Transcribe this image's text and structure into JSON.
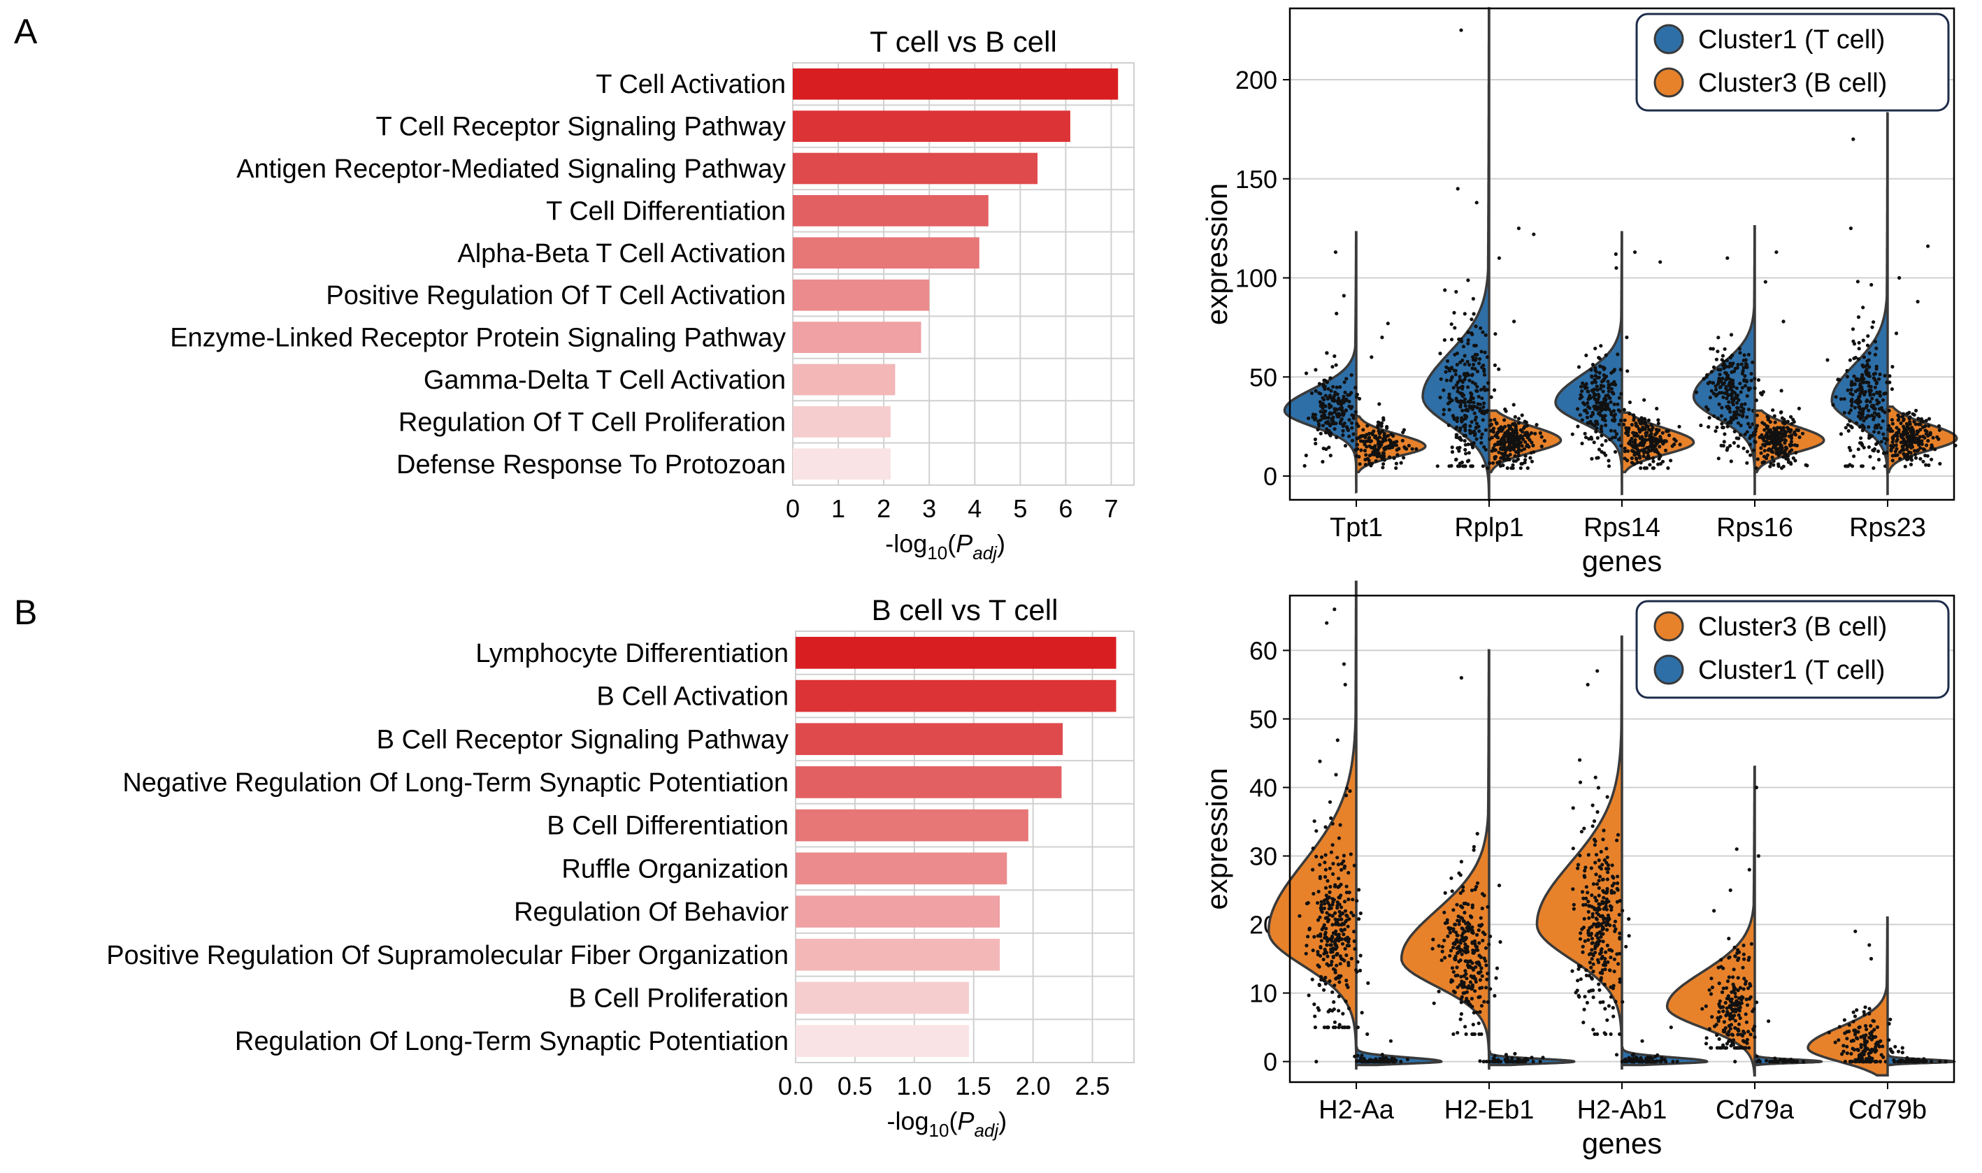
{
  "panel_labels": [
    "A",
    "B"
  ],
  "colors": {
    "bar_red": "#d7191c",
    "tcell_blue": "#2e6fa7",
    "bcell_orange": "#e7822b",
    "outline": "#3a3a3a",
    "grid": "#d0d0d0",
    "legend_border": "#1d2c4a"
  },
  "chart_data": [
    {
      "id": "A-bar",
      "type": "bar",
      "orientation": "horizontal",
      "title": "T cell vs B cell",
      "xlabel": "-log",
      "xlabel_sub": "10",
      "xlabel_arg": "P",
      "xlabel_arg_sub": "adj",
      "xlim": [
        0,
        7.5
      ],
      "xticks": [
        0,
        1,
        2,
        3,
        4,
        5,
        6,
        7
      ],
      "xtick_labels": [
        "0",
        "1",
        "2",
        "3",
        "4",
        "5",
        "6",
        "7"
      ],
      "categories": [
        "T Cell Activation",
        "T Cell Receptor Signaling Pathway",
        "Antigen Receptor-Mediated Signaling Pathway",
        "T Cell Differentiation",
        "Alpha-Beta T Cell Activation",
        "Positive Regulation Of T Cell Activation",
        "Enzyme-Linked Receptor Protein Signaling Pathway",
        "Gamma-Delta T Cell Activation",
        "Regulation Of T Cell Proliferation",
        "Defense Response To Protozoan"
      ],
      "values": [
        7.15,
        6.1,
        5.38,
        4.3,
        4.1,
        3.0,
        2.82,
        2.25,
        2.15,
        2.15
      ]
    },
    {
      "id": "A-violin",
      "type": "violin",
      "title": "",
      "xlabel": "genes",
      "ylabel": "expression",
      "ylim": [
        -12,
        236
      ],
      "yticks": [
        0,
        50,
        100,
        150,
        200
      ],
      "genes": [
        "Tpt1",
        "Rplp1",
        "Rps14",
        "Rps16",
        "Rps23"
      ],
      "legend": [
        {
          "name": "Cluster1 (T cell)",
          "color": "#2e6fa7"
        },
        {
          "name": "Cluster3 (B cell)",
          "color": "#e7822b"
        }
      ],
      "series": [
        {
          "name": "Cluster1 (T cell)",
          "side": "left",
          "color": "#2e6fa7",
          "profiles": [
            {
              "min": -8,
              "max": 123,
              "mode": 33,
              "sdLow": 8,
              "sdHigh": 11,
              "width": 0.27,
              "ptMin": 5,
              "ptMax": 75,
              "n": 180,
              "outliers": [
                82,
                91,
                113
              ]
            },
            {
              "min": -12,
              "max": 236,
              "mode": 40,
              "sdLow": 14,
              "sdHigh": 22,
              "width": 0.25,
              "ptMin": 5,
              "ptMax": 125,
              "n": 260,
              "outliers": [
                138,
                145,
                225
              ]
            },
            {
              "min": -9,
              "max": 123,
              "mode": 37,
              "sdLow": 10,
              "sdHigh": 14,
              "width": 0.25,
              "ptMin": 5,
              "ptMax": 90,
              "n": 220,
              "outliers": [
                105,
                112
              ]
            },
            {
              "min": -9,
              "max": 126,
              "mode": 40,
              "sdLow": 11,
              "sdHigh": 15,
              "width": 0.23,
              "ptMin": 5,
              "ptMax": 100,
              "n": 220,
              "outliers": [
                110
              ]
            },
            {
              "min": -9,
              "max": 183,
              "mode": 38,
              "sdLow": 11,
              "sdHigh": 18,
              "width": 0.21,
              "ptMin": 5,
              "ptMax": 108,
              "n": 240,
              "outliers": [
                125,
                170
              ]
            }
          ]
        },
        {
          "name": "Cluster3 (B cell)",
          "side": "right",
          "color": "#e7822b",
          "profiles": [
            {
              "min": 2,
              "max": 30,
              "mode": 15,
              "sdLow": 5,
              "sdHigh": 6,
              "width": 0.26,
              "ptMin": 4,
              "ptMax": 42,
              "n": 160,
              "outliers": [
                60,
                70,
                77
              ]
            },
            {
              "min": 2,
              "max": 33,
              "mode": 18,
              "sdLow": 6,
              "sdHigh": 7,
              "width": 0.27,
              "ptMin": 4,
              "ptMax": 55,
              "n": 230,
              "outliers": [
                78,
                110,
                122,
                125
              ]
            },
            {
              "min": 2,
              "max": 32,
              "mode": 17,
              "sdLow": 6,
              "sdHigh": 7,
              "width": 0.27,
              "ptMin": 4,
              "ptMax": 48,
              "n": 210,
              "outliers": [
                70,
                108,
                113
              ]
            },
            {
              "min": 2,
              "max": 33,
              "mode": 18,
              "sdLow": 6,
              "sdHigh": 7,
              "width": 0.26,
              "ptMin": 4,
              "ptMax": 55,
              "n": 220,
              "outliers": [
                78,
                98,
                113
              ]
            },
            {
              "min": 2,
              "max": 35,
              "mode": 19,
              "sdLow": 6,
              "sdHigh": 7,
              "width": 0.26,
              "ptMin": 4,
              "ptMax": 55,
              "n": 220,
              "outliers": [
                72,
                88,
                100,
                116
              ]
            }
          ]
        }
      ]
    },
    {
      "id": "B-bar",
      "type": "bar",
      "orientation": "horizontal",
      "title": "B cell vs T cell",
      "xlabel": "-log",
      "xlabel_sub": "10",
      "xlabel_arg": "P",
      "xlabel_arg_sub": "adj",
      "xlim": [
        0,
        2.85
      ],
      "xticks": [
        0,
        0.5,
        1,
        1.5,
        2,
        2.5
      ],
      "xtick_labels": [
        "0.0",
        "0.5",
        "1.0",
        "1.5",
        "2.0",
        "2.5"
      ],
      "categories": [
        "Lymphocyte Differentiation",
        "B Cell Activation",
        "B Cell Receptor Signaling Pathway",
        "Negative Regulation Of Long-Term Synaptic Potentiation",
        "B Cell Differentiation",
        "Ruffle Organization",
        "Regulation Of Behavior",
        "Positive Regulation Of Supramolecular Fiber Organization",
        "B Cell Proliferation",
        "Regulation Of Long-Term Synaptic Potentiation"
      ],
      "values": [
        2.7,
        2.7,
        2.25,
        2.24,
        1.96,
        1.78,
        1.72,
        1.72,
        1.46,
        1.46
      ]
    },
    {
      "id": "B-violin",
      "type": "violin",
      "title": "",
      "xlabel": "genes",
      "ylabel": "expression",
      "ylim": [
        -3,
        68
      ],
      "yticks": [
        0,
        10,
        20,
        30,
        40,
        50,
        60
      ],
      "genes": [
        "H2-Aa",
        "H2-Eb1",
        "H2-Ab1",
        "Cd79a",
        "Cd79b"
      ],
      "legend": [
        {
          "name": "Cluster3 (B cell)",
          "color": "#e7822b"
        },
        {
          "name": "Cluster1 (T cell)",
          "color": "#2e6fa7"
        }
      ],
      "series": [
        {
          "name": "Cluster3 (B cell)",
          "side": "left",
          "color": "#e7822b",
          "profiles": [
            {
              "min": -1,
              "max": 70,
              "mode": 19,
              "sdLow": 5,
              "sdHigh": 10,
              "width": 0.33,
              "ptMin": 5,
              "ptMax": 47,
              "n": 300,
              "outliers": [
                0,
                55,
                58,
                64,
                66
              ]
            },
            {
              "min": -1,
              "max": 60,
              "mode": 15,
              "sdLow": 4,
              "sdHigh": 7,
              "width": 0.33,
              "ptMin": 4,
              "ptMax": 40,
              "n": 260,
              "outliers": [
                56
              ]
            },
            {
              "min": -1,
              "max": 62,
              "mode": 20,
              "sdLow": 5,
              "sdHigh": 9,
              "width": 0.32,
              "ptMin": 4,
              "ptMax": 52,
              "n": 290,
              "outliers": [
                1,
                55,
                57
              ]
            },
            {
              "min": -2,
              "max": 43,
              "mode": 8,
              "sdLow": 3,
              "sdHigh": 5,
              "width": 0.33,
              "ptMin": 2,
              "ptMax": 20,
              "n": 200,
              "outliers": [
                0,
                22,
                25,
                28,
                30,
                31,
                40
              ]
            },
            {
              "min": -2,
              "max": 21,
              "mode": 2,
              "sdLow": 2,
              "sdHigh": 3,
              "width": 0.3,
              "ptMin": 0,
              "ptMax": 12,
              "n": 160,
              "outliers": [
                15,
                17,
                19
              ]
            }
          ]
        },
        {
          "name": "Cluster1 (T cell)",
          "side": "right",
          "color": "#2e6fa7",
          "profiles": [
            {
              "min": -0.5,
              "max": 2,
              "mode": 0,
              "sdLow": 0.3,
              "sdHigh": 0.6,
              "width": 0.32,
              "ptMin": 0,
              "ptMax": 2,
              "n": 70,
              "outliers": [
                3,
                4
              ]
            },
            {
              "min": -0.5,
              "max": 1.5,
              "mode": 0,
              "sdLow": 0.3,
              "sdHigh": 0.4,
              "width": 0.32,
              "ptMin": 0,
              "ptMax": 2,
              "n": 60,
              "outliers": []
            },
            {
              "min": -0.5,
              "max": 2,
              "mode": 0,
              "sdLow": 0.3,
              "sdHigh": 0.6,
              "width": 0.32,
              "ptMin": 0,
              "ptMax": 2,
              "n": 70,
              "outliers": [
                3,
                5
              ]
            },
            {
              "min": -0.5,
              "max": 1,
              "mode": 0,
              "sdLow": 0.2,
              "sdHigh": 0.3,
              "width": 0.25,
              "ptMin": 0,
              "ptMax": 1,
              "n": 40,
              "outliers": []
            },
            {
              "min": -0.5,
              "max": 1,
              "mode": 0,
              "sdLow": 0.2,
              "sdHigh": 0.3,
              "width": 0.25,
              "ptMin": 0,
              "ptMax": 1,
              "n": 40,
              "outliers": [
                2
              ]
            }
          ]
        }
      ]
    }
  ]
}
